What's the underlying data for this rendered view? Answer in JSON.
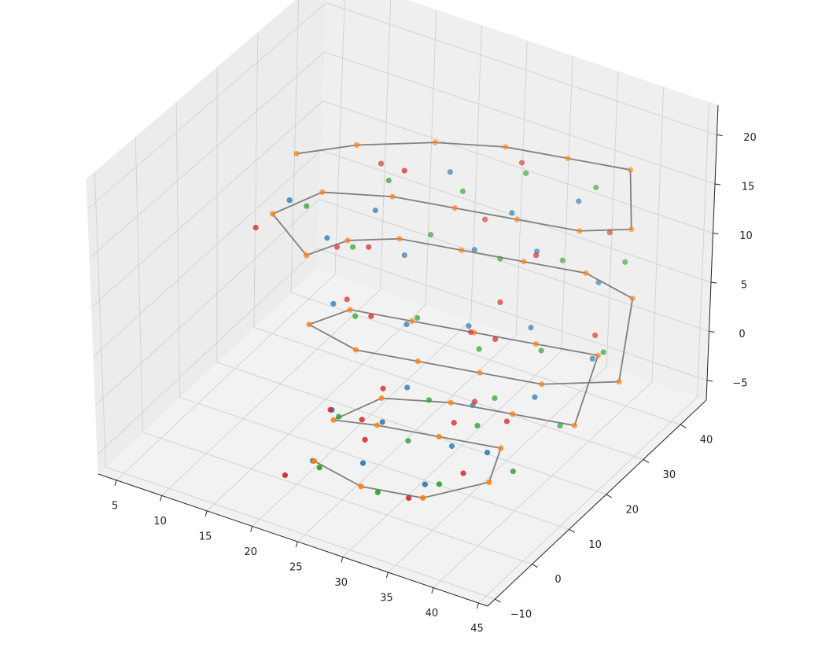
{
  "chart_data": {
    "type": "scatter3d",
    "xlim": [
      3,
      46
    ],
    "ylim": [
      -12,
      47
    ],
    "zlim": [
      -7,
      23
    ],
    "xticks": [
      5,
      10,
      15,
      20,
      25,
      30,
      35,
      40,
      45
    ],
    "yticks": [
      {
        "value": -10,
        "label": "−10"
      },
      0,
      10,
      20,
      30,
      40
    ],
    "zticks": [
      {
        "value": -5,
        "label": "−5"
      },
      0,
      5,
      10,
      15,
      20
    ],
    "grid": true,
    "series": [
      {
        "color": "#1f77b4",
        "x": [
          21,
          27,
          33,
          37,
          31,
          25,
          19,
          24,
          30,
          36,
          15,
          21,
          27,
          33,
          39,
          13,
          19,
          25,
          31,
          37,
          11,
          17,
          23,
          29,
          35
        ],
        "y": [
          2,
          1,
          3,
          10,
          15,
          11,
          12,
          20,
          23,
          25,
          22,
          27,
          29,
          31,
          33,
          25,
          31,
          35,
          37,
          39,
          20,
          28,
          33,
          35,
          38
        ],
        "z": [
          -5,
          -3,
          -4,
          -2,
          -5,
          -3,
          -4,
          -3,
          -4,
          -2,
          2,
          0,
          1,
          2,
          0,
          7,
          5,
          6,
          7,
          5,
          12,
          10,
          14,
          11,
          13
        ]
      },
      {
        "color": "#ff7f0e",
        "line": true,
        "line_color": "#808080",
        "x": [
          22,
          28,
          34,
          38,
          36,
          30,
          24,
          20,
          22,
          28,
          34,
          40,
          40,
          34,
          28,
          22,
          16,
          14,
          20,
          26,
          32,
          38,
          44,
          42,
          36,
          30,
          24,
          18,
          14,
          12,
          10,
          12,
          18,
          24,
          30,
          36,
          40,
          38,
          32,
          26,
          20,
          14,
          10
        ],
        "y": [
          0,
          -2,
          0,
          8,
          16,
          14,
          12,
          10,
          18,
          22,
          24,
          26,
          32,
          30,
          28,
          26,
          24,
          18,
          16,
          18,
          20,
          22,
          28,
          36,
          38,
          36,
          34,
          32,
          28,
          22,
          18,
          26,
          30,
          32,
          34,
          36,
          40,
          44,
          42,
          40,
          36,
          30,
          24
        ],
        "z": [
          -4,
          -4,
          -4,
          -4,
          -4,
          -4,
          -4,
          -4,
          -4,
          -4,
          -4,
          -4,
          1,
          1,
          1,
          1,
          1,
          1,
          1,
          1,
          1,
          1,
          1,
          6,
          6,
          6,
          6,
          6,
          6,
          6,
          11,
          11,
          11,
          11,
          11,
          11,
          11,
          15,
          15,
          15,
          15,
          15,
          15
        ]
      },
      {
        "color": "#2ca02c",
        "x": [
          23,
          29,
          35,
          39,
          33,
          27,
          21,
          26,
          32,
          38,
          17,
          23,
          29,
          35,
          41,
          15,
          21,
          27,
          33,
          39,
          12,
          18,
          24,
          30,
          36
        ],
        "y": [
          -1,
          0,
          2,
          12,
          17,
          13,
          9,
          21,
          24,
          27,
          23,
          25,
          27,
          29,
          31,
          27,
          33,
          37,
          39,
          41,
          22,
          29,
          34,
          36,
          40
        ],
        "z": [
          -4,
          -5,
          -3,
          -4,
          -3,
          -5,
          -3,
          -4,
          -3,
          -5,
          1,
          2,
          0,
          1,
          2,
          6,
          7,
          5,
          6,
          7,
          11,
          13,
          12,
          15,
          14
        ]
      },
      {
        "color": "#d62728",
        "x": [
          20,
          26,
          32,
          36,
          30,
          24,
          18,
          23,
          29,
          35,
          14,
          20,
          26,
          32,
          38,
          12,
          18,
          24,
          30,
          36,
          9,
          15,
          21,
          27,
          33
        ],
        "y": [
          -3,
          4,
          1,
          6,
          18,
          8,
          14,
          16,
          26,
          20,
          28,
          20,
          32,
          24,
          36,
          30,
          24,
          40,
          30,
          44,
          16,
          34,
          26,
          42,
          32
        ],
        "z": [
          -5,
          -2,
          -5,
          -3,
          -4,
          -2,
          -5,
          -2,
          -5,
          -3,
          0,
          3,
          -1,
          3,
          1,
          4,
          8,
          7,
          4,
          8,
          10,
          12,
          16,
          13,
          9
        ]
      }
    ]
  }
}
